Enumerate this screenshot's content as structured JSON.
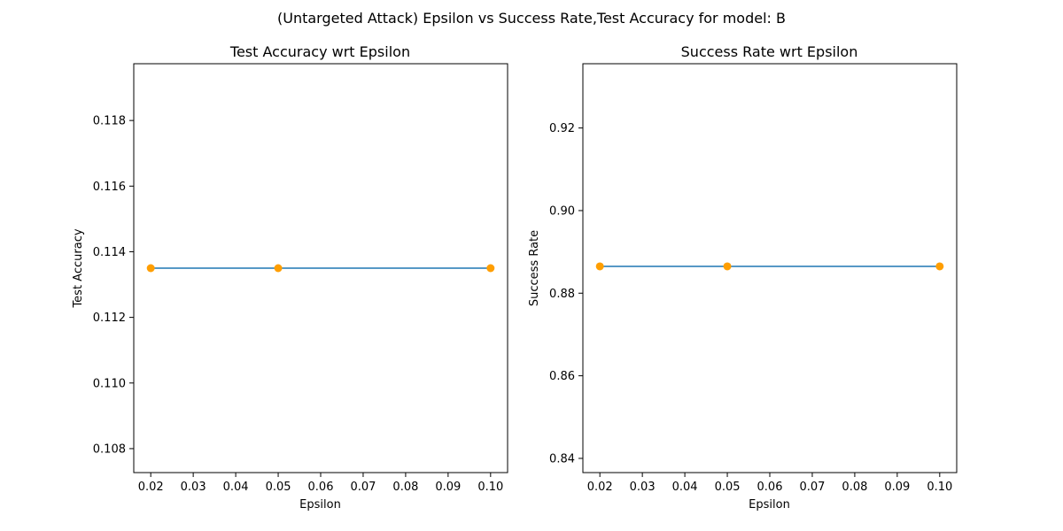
{
  "figure": {
    "suptitle": "(Untargeted Attack) Epsilon vs Success Rate,Test Accuracy for model: B"
  },
  "chart_data": [
    {
      "type": "line",
      "title": "Test Accuracy wrt Epsilon",
      "xlabel": "Epsilon",
      "ylabel": "Test Accuracy",
      "x": [
        0.02,
        0.05,
        0.1
      ],
      "series": [
        {
          "values": [
            0.1135,
            0.1135,
            0.1135
          ]
        }
      ],
      "markers": true,
      "xlim": [
        0.016,
        0.104
      ],
      "ylim": [
        0.10727,
        0.11973
      ],
      "xticks": [
        0.02,
        0.03,
        0.04,
        0.05,
        0.06,
        0.07,
        0.08,
        0.09,
        0.1
      ],
      "xticklabels": [
        "0.02",
        "0.03",
        "0.04",
        "0.05",
        "0.06",
        "0.07",
        "0.08",
        "0.09",
        "0.10"
      ],
      "yticks": [
        0.108,
        0.11,
        0.112,
        0.114,
        0.116,
        0.118
      ],
      "yticklabels": [
        "0.108",
        "0.110",
        "0.112",
        "0.114",
        "0.116",
        "0.118"
      ],
      "grid": false,
      "line_color": "#1f77b4",
      "marker_color": "#ff9e00"
    },
    {
      "type": "line",
      "title": "Success Rate wrt Epsilon",
      "xlabel": "Epsilon",
      "ylabel": "Success Rate",
      "x": [
        0.02,
        0.05,
        0.1
      ],
      "series": [
        {
          "values": [
            0.8865,
            0.8865,
            0.8865
          ]
        }
      ],
      "markers": true,
      "xlim": [
        0.016,
        0.104
      ],
      "ylim": [
        0.83656,
        0.93556
      ],
      "xticks": [
        0.02,
        0.03,
        0.04,
        0.05,
        0.06,
        0.07,
        0.08,
        0.09,
        0.1
      ],
      "xticklabels": [
        "0.02",
        "0.03",
        "0.04",
        "0.05",
        "0.06",
        "0.07",
        "0.08",
        "0.09",
        "0.10"
      ],
      "yticks": [
        0.84,
        0.86,
        0.88,
        0.9,
        0.92
      ],
      "yticklabels": [
        "0.84",
        "0.86",
        "0.88",
        "0.90",
        "0.92"
      ],
      "grid": false,
      "line_color": "#1f77b4",
      "marker_color": "#ff9e00"
    }
  ]
}
